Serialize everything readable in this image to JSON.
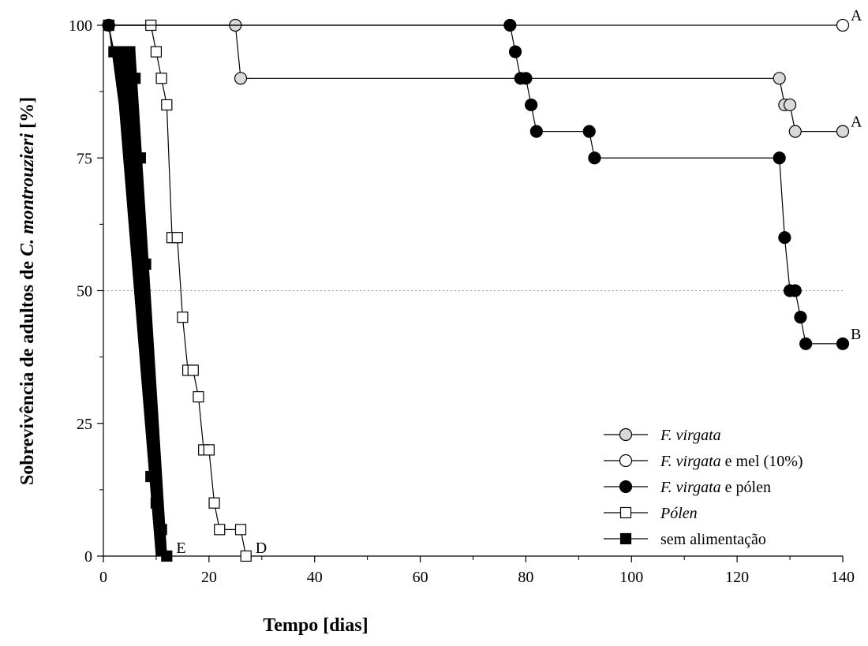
{
  "chart_data": {
    "type": "line",
    "title": "",
    "xlabel": "Tempo [dias]",
    "ylabel_parts": [
      {
        "text": "Sobrevivência de adultos de ",
        "italic": false
      },
      {
        "text": "C. montrouzieri",
        "italic": true
      },
      {
        "text": " [%]",
        "italic": false
      }
    ],
    "xlim": [
      0,
      140
    ],
    "ylim": [
      0,
      100
    ],
    "xticks": [
      0,
      20,
      40,
      60,
      80,
      100,
      120,
      140
    ],
    "yticks": [
      0,
      25,
      50,
      75,
      100
    ],
    "reference_line_y": 50,
    "legend_position": "bottom-right",
    "series": [
      {
        "name_parts": [
          {
            "text": "F. virgata",
            "italic": true
          }
        ],
        "marker": "circle",
        "fill": "#d9d9d9",
        "line_width": 1.2,
        "end_label": "A",
        "points": [
          [
            1,
            100
          ],
          [
            25,
            100
          ],
          [
            26,
            90
          ],
          [
            128,
            90
          ],
          [
            129,
            85
          ],
          [
            130,
            85
          ],
          [
            131,
            80
          ],
          [
            140,
            80
          ]
        ]
      },
      {
        "name_parts": [
          {
            "text": "F. virgata",
            "italic": true
          },
          {
            "text": " e mel (10%)",
            "italic": false
          }
        ],
        "marker": "circle",
        "fill": "#ffffff",
        "line_width": 1.2,
        "end_label": "A",
        "points": [
          [
            1,
            100
          ],
          [
            140,
            100
          ]
        ]
      },
      {
        "name_parts": [
          {
            "text": "F. virgata",
            "italic": true
          },
          {
            "text": " e pólen",
            "italic": false
          }
        ],
        "marker": "circle",
        "fill": "#000000",
        "line_width": 1.2,
        "end_label": "B",
        "points": [
          [
            1,
            100
          ],
          [
            77,
            100
          ],
          [
            78,
            95
          ],
          [
            79,
            90
          ],
          [
            80,
            90
          ],
          [
            81,
            85
          ],
          [
            82,
            80
          ],
          [
            92,
            80
          ],
          [
            93,
            75
          ],
          [
            128,
            75
          ],
          [
            129,
            60
          ],
          [
            130,
            50
          ],
          [
            131,
            50
          ],
          [
            132,
            45
          ],
          [
            133,
            40
          ],
          [
            140,
            40
          ]
        ]
      },
      {
        "name_parts": [
          {
            "text": "Pólen",
            "italic": true
          }
        ],
        "marker": "square",
        "fill": "#ffffff",
        "line_width": 1.2,
        "end_label": "D",
        "points": [
          [
            1,
            100
          ],
          [
            9,
            100
          ],
          [
            10,
            95
          ],
          [
            11,
            90
          ],
          [
            12,
            85
          ],
          [
            13,
            60
          ],
          [
            14,
            60
          ],
          [
            15,
            45
          ],
          [
            16,
            35
          ],
          [
            17,
            35
          ],
          [
            18,
            30
          ],
          [
            19,
            20
          ],
          [
            20,
            20
          ],
          [
            21,
            10
          ],
          [
            22,
            5
          ],
          [
            26,
            5
          ],
          [
            27,
            0
          ]
        ]
      },
      {
        "name_parts": [
          {
            "text": "sem alimentação",
            "italic": false
          }
        ],
        "marker": "square",
        "fill": "#000000",
        "line_width": 1.2,
        "end_label": "E",
        "points": [
          [
            1,
            100
          ],
          [
            2,
            95
          ],
          [
            3,
            95
          ],
          [
            4,
            95
          ],
          [
            5,
            95
          ],
          [
            6,
            90
          ],
          [
            7,
            75
          ],
          [
            8,
            55
          ],
          [
            9,
            15
          ],
          [
            10,
            10
          ],
          [
            11,
            5
          ],
          [
            12,
            0
          ]
        ],
        "band": [
          [
            1,
            100
          ],
          [
            2,
            95
          ],
          [
            6,
            95
          ],
          [
            12,
            0
          ],
          [
            10,
            0
          ],
          [
            3,
            85
          ]
        ]
      }
    ]
  }
}
